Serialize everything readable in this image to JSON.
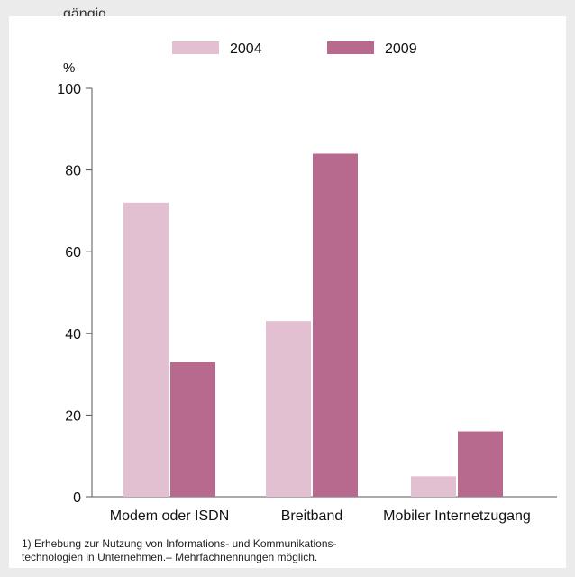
{
  "top_strip": {
    "text": "gängig"
  },
  "chart_data": {
    "type": "bar",
    "title": "",
    "unit_label": "%",
    "xlabel": "",
    "ylabel": "",
    "categories": [
      "Modem oder ISDN",
      "Breitband",
      "Mobiler Internetzugang"
    ],
    "series": [
      {
        "name": "2004",
        "values": [
          72,
          43,
          5
        ],
        "color": "#e3c0d1"
      },
      {
        "name": "2009",
        "values": [
          33,
          84,
          16
        ],
        "color": "#b86a8e"
      }
    ],
    "ylim": [
      0,
      100
    ],
    "yticks": [
      0,
      20,
      40,
      60,
      80,
      100
    ],
    "grid": false,
    "legend": "top"
  },
  "footnote": {
    "line1": "1) Erhebung zur  Nutzung von Informations- und Kommunikations-",
    "line2": "technologien in Unternehmen.– Mehrfachnennungen möglich."
  }
}
